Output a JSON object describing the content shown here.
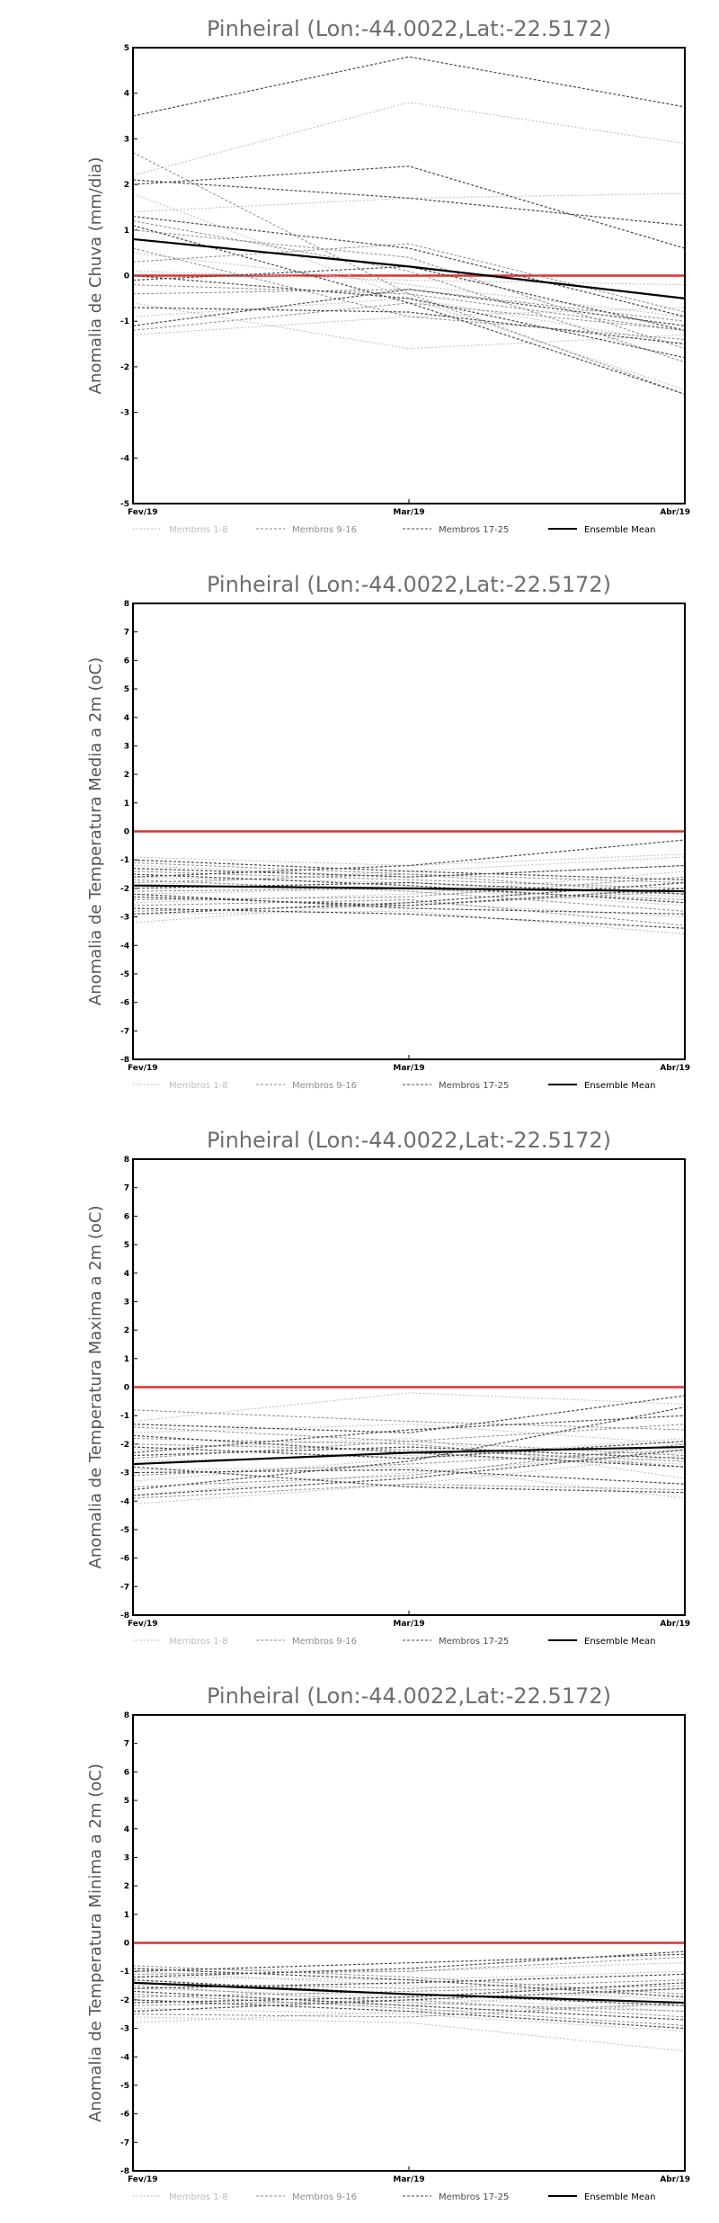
{
  "legend": [
    "Membros 1-8",
    "Membros 9-16",
    "Membros 17-25",
    "Ensemble Mean"
  ],
  "colors": {
    "members_1_8": "#bdbdbd",
    "members_9_16": "#8c8c8c",
    "members_17_25": "#4a4a4a",
    "ensemble_mean": "#000000",
    "zero_line": "#e03030",
    "title": "#6e6e6e"
  },
  "chart_data": [
    {
      "type": "line",
      "title": "Pinheiral (Lon:-44.0022,Lat:-22.5172)",
      "xlabel": "",
      "ylabel": "Anomalia de Chuva (mm/dia)",
      "categories": [
        "Fev/19",
        "Mar/19",
        "Abr/19"
      ],
      "ylim": [
        -5,
        5
      ],
      "yticks": [
        "5",
        "4",
        "3",
        "2",
        "1",
        "0",
        "-1",
        "-2",
        "-3",
        "-4",
        "-5"
      ],
      "grid": false,
      "legend_position": "bottom",
      "zero_line": 0,
      "series": [
        {
          "group": 1,
          "values": [
            2.2,
            3.8,
            2.9
          ]
        },
        {
          "group": 1,
          "values": [
            1.4,
            1.7,
            1.8
          ]
        },
        {
          "group": 1,
          "values": [
            0.5,
            -0.2,
            -0.9
          ]
        },
        {
          "group": 1,
          "values": [
            -0.6,
            -1.6,
            -1.3
          ]
        },
        {
          "group": 1,
          "values": [
            -0.9,
            -0.5,
            -1.5
          ]
        },
        {
          "group": 1,
          "values": [
            -1.3,
            -0.9,
            -0.7
          ]
        },
        {
          "group": 1,
          "values": [
            0.1,
            -0.1,
            -0.2
          ]
        },
        {
          "group": 1,
          "values": [
            1.8,
            -0.5,
            -2.5
          ]
        },
        {
          "group": 2,
          "values": [
            2.7,
            -0.4,
            -2.6
          ]
        },
        {
          "group": 2,
          "values": [
            1.0,
            0.4,
            -1.6
          ]
        },
        {
          "group": 2,
          "values": [
            -0.2,
            -0.4,
            -1.2
          ]
        },
        {
          "group": 2,
          "values": [
            0.3,
            0.7,
            -0.8
          ]
        },
        {
          "group": 2,
          "values": [
            -1.2,
            -0.6,
            -1.2
          ]
        },
        {
          "group": 2,
          "values": [
            0.6,
            -0.9,
            -1.4
          ]
        },
        {
          "group": 2,
          "values": [
            -0.4,
            -0.3,
            -1.0
          ]
        },
        {
          "group": 2,
          "values": [
            1.2,
            0.1,
            -1.9
          ]
        },
        {
          "group": 3,
          "values": [
            3.5,
            4.8,
            3.7
          ]
        },
        {
          "group": 3,
          "values": [
            2.0,
            2.4,
            0.6
          ]
        },
        {
          "group": 3,
          "values": [
            2.1,
            1.7,
            1.1
          ]
        },
        {
          "group": 3,
          "values": [
            1.3,
            0.6,
            -0.9
          ]
        },
        {
          "group": 3,
          "values": [
            -1.1,
            -0.3,
            -1.1
          ]
        },
        {
          "group": 3,
          "values": [
            -0.1,
            0.2,
            -1.2
          ]
        },
        {
          "group": 3,
          "values": [
            0.0,
            -0.5,
            -1.8
          ]
        },
        {
          "group": 3,
          "values": [
            -0.7,
            -0.8,
            -1.5
          ]
        },
        {
          "group": 3,
          "values": [
            1.1,
            -0.6,
            -2.6
          ]
        },
        {
          "group": "mean",
          "name": "Ensemble Mean",
          "values": [
            0.8,
            0.2,
            -0.5
          ]
        }
      ]
    },
    {
      "type": "line",
      "title": "Pinheiral (Lon:-44.0022,Lat:-22.5172)",
      "xlabel": "",
      "ylabel": "Anomalia de Temperatura Media a 2m (oC)",
      "categories": [
        "Fev/19",
        "Mar/19",
        "Abr/19"
      ],
      "ylim": [
        -8,
        8
      ],
      "yticks": [
        "8",
        "7",
        "6",
        "5",
        "4",
        "3",
        "2",
        "1",
        "0",
        "-1",
        "-2",
        "-3",
        "-4",
        "-5",
        "-6",
        "-7",
        "-8"
      ],
      "grid": false,
      "legend_position": "bottom",
      "zero_line": 0,
      "series": [
        {
          "group": 1,
          "values": [
            -0.9,
            -1.2,
            -0.8
          ]
        },
        {
          "group": 1,
          "values": [
            -1.2,
            -1.6,
            -1.2
          ]
        },
        {
          "group": 1,
          "values": [
            -2.9,
            -2.8,
            -3.6
          ]
        },
        {
          "group": 1,
          "values": [
            -3.2,
            -2.5,
            -3.0
          ]
        },
        {
          "group": 1,
          "values": [
            -2.2,
            -2.0,
            -2.6
          ]
        },
        {
          "group": 1,
          "values": [
            -1.6,
            -1.8,
            -2.3
          ]
        },
        {
          "group": 1,
          "values": [
            -2.5,
            -2.2,
            -1.4
          ]
        },
        {
          "group": 1,
          "values": [
            -1.9,
            -1.4,
            -0.9
          ]
        },
        {
          "group": 2,
          "values": [
            -1.4,
            -1.7,
            -2.0
          ]
        },
        {
          "group": 2,
          "values": [
            -2.6,
            -2.4,
            -3.3
          ]
        },
        {
          "group": 2,
          "values": [
            -1.8,
            -1.5,
            -1.8
          ]
        },
        {
          "group": 2,
          "values": [
            -2.1,
            -2.0,
            -2.4
          ]
        },
        {
          "group": 2,
          "values": [
            -2.8,
            -2.6,
            -2.1
          ]
        },
        {
          "group": 2,
          "values": [
            -1.1,
            -1.5,
            -2.2
          ]
        },
        {
          "group": 2,
          "values": [
            -2.4,
            -2.3,
            -1.6
          ]
        },
        {
          "group": 2,
          "values": [
            -1.7,
            -2.1,
            -2.8
          ]
        },
        {
          "group": 3,
          "values": [
            -1.3,
            -1.6,
            -1.2
          ]
        },
        {
          "group": 3,
          "values": [
            -2.0,
            -1.8,
            -2.2
          ]
        },
        {
          "group": 3,
          "values": [
            -2.7,
            -2.9,
            -3.4
          ]
        },
        {
          "group": 3,
          "values": [
            -1.5,
            -1.9,
            -2.5
          ]
        },
        {
          "group": 3,
          "values": [
            -2.3,
            -2.6,
            -2.0
          ]
        },
        {
          "group": 3,
          "values": [
            -1.6,
            -1.2,
            -0.3
          ]
        },
        {
          "group": 3,
          "values": [
            -2.9,
            -2.5,
            -1.8
          ]
        },
        {
          "group": 3,
          "values": [
            -1.0,
            -1.4,
            -1.7
          ]
        },
        {
          "group": 3,
          "values": [
            -2.2,
            -2.7,
            -2.9
          ]
        },
        {
          "group": "mean",
          "name": "Ensemble Mean",
          "values": [
            -1.9,
            -2.0,
            -2.1
          ]
        }
      ]
    },
    {
      "type": "line",
      "title": "Pinheiral (Lon:-44.0022,Lat:-22.5172)",
      "xlabel": "",
      "ylabel": "Anomalia de Temperatura Maxima a 2m (oC)",
      "categories": [
        "Fev/19",
        "Mar/19",
        "Abr/19"
      ],
      "ylim": [
        -8,
        8
      ],
      "yticks": [
        "8",
        "7",
        "6",
        "5",
        "4",
        "3",
        "2",
        "1",
        "0",
        "-1",
        "-2",
        "-3",
        "-4",
        "-5",
        "-6",
        "-7",
        "-8"
      ],
      "grid": false,
      "legend_position": "bottom",
      "zero_line": 0,
      "series": [
        {
          "group": 1,
          "values": [
            -1.2,
            -0.2,
            -0.6
          ]
        },
        {
          "group": 1,
          "values": [
            -3.8,
            -3.0,
            -2.3
          ]
        },
        {
          "group": 1,
          "values": [
            -2.2,
            -1.8,
            -3.2
          ]
        },
        {
          "group": 1,
          "values": [
            -4.1,
            -3.4,
            -2.4
          ]
        },
        {
          "group": 1,
          "values": [
            -2.9,
            -2.8,
            -3.9
          ]
        },
        {
          "group": 1,
          "values": [
            -1.6,
            -1.3,
            -2.0
          ]
        },
        {
          "group": 1,
          "values": [
            -3.3,
            -2.5,
            -1.8
          ]
        },
        {
          "group": 1,
          "values": [
            -2.6,
            -2.4,
            -2.7
          ]
        },
        {
          "group": 2,
          "values": [
            -0.8,
            -1.2,
            -1.5
          ]
        },
        {
          "group": 2,
          "values": [
            -3.5,
            -3.1,
            -2.0
          ]
        },
        {
          "group": 2,
          "values": [
            -2.0,
            -2.2,
            -2.6
          ]
        },
        {
          "group": 2,
          "values": [
            -1.4,
            -1.9,
            -2.4
          ]
        },
        {
          "group": 2,
          "values": [
            -3.9,
            -3.4,
            -3.6
          ]
        },
        {
          "group": 2,
          "values": [
            -2.5,
            -1.9,
            -1.3
          ]
        },
        {
          "group": 2,
          "values": [
            -3.1,
            -2.7,
            -2.2
          ]
        },
        {
          "group": 2,
          "values": [
            -1.8,
            -2.0,
            -2.8
          ]
        },
        {
          "group": 3,
          "values": [
            -3.6,
            -2.6,
            -0.7
          ]
        },
        {
          "group": 3,
          "values": [
            -2.4,
            -2.1,
            -2.5
          ]
        },
        {
          "group": 3,
          "values": [
            -1.3,
            -1.6,
            -0.3
          ]
        },
        {
          "group": 3,
          "values": [
            -3.0,
            -2.9,
            -3.4
          ]
        },
        {
          "group": 3,
          "values": [
            -2.1,
            -2.5,
            -1.9
          ]
        },
        {
          "group": 3,
          "values": [
            -3.8,
            -3.2,
            -2.2
          ]
        },
        {
          "group": 3,
          "values": [
            -1.7,
            -2.3,
            -2.8
          ]
        },
        {
          "group": 3,
          "values": [
            -2.8,
            -3.5,
            -3.7
          ]
        },
        {
          "group": 3,
          "values": [
            -2.3,
            -1.5,
            -1.0
          ]
        },
        {
          "group": "mean",
          "name": "Ensemble Mean",
          "values": [
            -2.7,
            -2.3,
            -2.1
          ]
        }
      ]
    },
    {
      "type": "line",
      "title": "Pinheiral (Lon:-44.0022,Lat:-22.5172)",
      "xlabel": "",
      "ylabel": "Anomalia de Temperatura Minima a 2m (oC)",
      "categories": [
        "Fev/19",
        "Mar/19",
        "Abr/19"
      ],
      "ylim": [
        -8,
        8
      ],
      "yticks": [
        "8",
        "7",
        "6",
        "5",
        "4",
        "3",
        "2",
        "1",
        "0",
        "-1",
        "-2",
        "-3",
        "-4",
        "-5",
        "-6",
        "-7",
        "-8"
      ],
      "grid": false,
      "legend_position": "bottom",
      "zero_line": 0,
      "series": [
        {
          "group": 1,
          "values": [
            -0.9,
            -1.0,
            -0.7
          ]
        },
        {
          "group": 1,
          "values": [
            -2.6,
            -2.8,
            -3.8
          ]
        },
        {
          "group": 1,
          "values": [
            -1.6,
            -1.9,
            -2.4
          ]
        },
        {
          "group": 1,
          "values": [
            -2.3,
            -2.5,
            -3.1
          ]
        },
        {
          "group": 1,
          "values": [
            -1.2,
            -1.3,
            -1.0
          ]
        },
        {
          "group": 1,
          "values": [
            -2.8,
            -2.4,
            -2.2
          ]
        },
        {
          "group": 1,
          "values": [
            -1.0,
            -1.5,
            -2.0
          ]
        },
        {
          "group": 1,
          "values": [
            -2.0,
            -2.2,
            -1.6
          ]
        },
        {
          "group": 2,
          "values": [
            -1.4,
            -1.6,
            -1.3
          ]
        },
        {
          "group": 2,
          "values": [
            -2.2,
            -2.0,
            -2.6
          ]
        },
        {
          "group": 2,
          "values": [
            -1.1,
            -1.0,
            -0.5
          ]
        },
        {
          "group": 2,
          "values": [
            -1.8,
            -2.3,
            -2.9
          ]
        },
        {
          "group": 2,
          "values": [
            -2.5,
            -2.6,
            -2.1
          ]
        },
        {
          "group": 2,
          "values": [
            -0.8,
            -1.2,
            -1.8
          ]
        },
        {
          "group": 2,
          "values": [
            -1.9,
            -1.7,
            -1.5
          ]
        },
        {
          "group": 2,
          "values": [
            -1.5,
            -2.1,
            -2.4
          ]
        },
        {
          "group": 3,
          "values": [
            -1.2,
            -0.9,
            -0.3
          ]
        },
        {
          "group": 3,
          "values": [
            -2.0,
            -2.4,
            -3.0
          ]
        },
        {
          "group": 3,
          "values": [
            -1.6,
            -1.4,
            -1.1
          ]
        },
        {
          "group": 3,
          "values": [
            -1.3,
            -1.8,
            -2.2
          ]
        },
        {
          "group": 3,
          "values": [
            -2.4,
            -2.0,
            -1.6
          ]
        },
        {
          "group": 3,
          "values": [
            -0.9,
            -1.3,
            -1.9
          ]
        },
        {
          "group": 3,
          "values": [
            -1.7,
            -2.2,
            -2.7
          ]
        },
        {
          "group": 3,
          "values": [
            -2.1,
            -1.9,
            -1.4
          ]
        },
        {
          "group": 3,
          "values": [
            -1.0,
            -0.7,
            -0.4
          ]
        },
        {
          "group": "mean",
          "name": "Ensemble Mean",
          "values": [
            -1.4,
            -1.8,
            -2.1
          ]
        }
      ]
    }
  ]
}
